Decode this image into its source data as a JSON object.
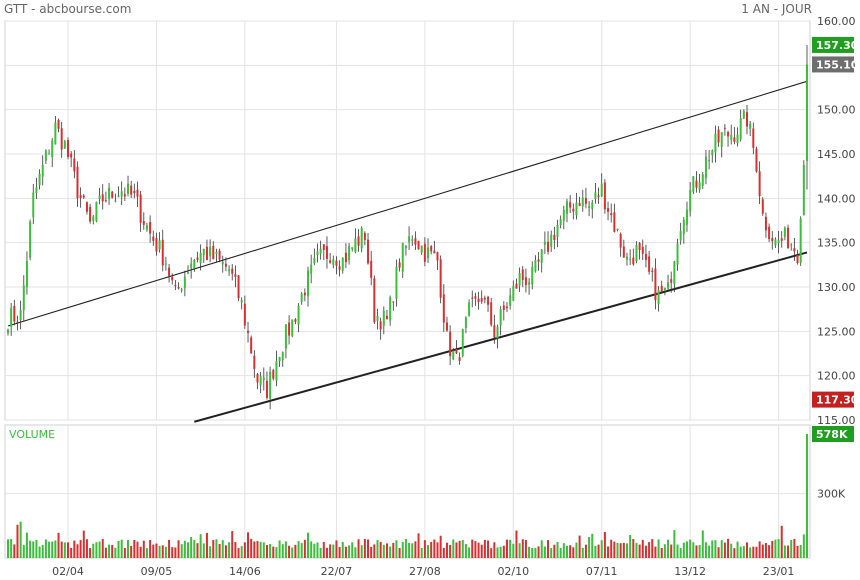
{
  "header": {
    "title": "GTT - abcbourse.com",
    "period": "1 AN - JOUR"
  },
  "chart_data": {
    "type": "candlestick",
    "symbol": "GTT",
    "price_axis": {
      "ylim": [
        115,
        160
      ],
      "ticks": [
        "160.00",
        "155.00",
        "150.00",
        "145.00",
        "140.00",
        "135.00",
        "130.00",
        "125.00",
        "120.00",
        "115.00"
      ]
    },
    "x_ticks": [
      "02/04",
      "09/05",
      "14/06",
      "22/07",
      "27/08",
      "02/10",
      "07/11",
      "13/12",
      "23/01"
    ],
    "badges": {
      "high": "157.30",
      "last": "155.10",
      "low": "117.30"
    },
    "trendlines": [
      {
        "name": "upper",
        "from": {
          "session": 0,
          "price": 125.6
        },
        "to": {
          "session": 253,
          "price": 153.2
        }
      },
      {
        "name": "lower",
        "from": {
          "session": 59,
          "price": 114.8
        },
        "to": {
          "session": 253,
          "price": 133.9
        }
      }
    ],
    "volume": {
      "title": "VOLUME",
      "tick": "300K",
      "tick_value": 300000,
      "max_label": "578K",
      "max_value": 578000,
      "ylim": [
        0,
        620000
      ]
    },
    "sessions": 254,
    "colors": {
      "up": "#3bbf3b",
      "down": "#d83030",
      "grid": "#e3e3e3",
      "high_badge": "#1f9e1f",
      "last_badge": "#6e6e6e",
      "low_badge": "#c42020"
    },
    "anchors": [
      [
        0,
        126.5
      ],
      [
        4,
        126.8
      ],
      [
        8,
        140
      ],
      [
        15,
        148
      ],
      [
        18,
        146
      ],
      [
        22,
        141
      ],
      [
        26,
        137
      ],
      [
        30,
        140
      ],
      [
        36,
        141
      ],
      [
        40,
        140
      ],
      [
        45,
        136
      ],
      [
        50,
        133
      ],
      [
        53,
        129
      ],
      [
        58,
        133
      ],
      [
        62,
        134
      ],
      [
        66,
        133
      ],
      [
        70,
        132
      ],
      [
        74,
        128
      ],
      [
        79,
        119.5
      ],
      [
        82,
        118.5
      ],
      [
        86,
        123
      ],
      [
        90,
        126
      ],
      [
        94,
        130
      ],
      [
        98,
        133
      ],
      [
        102,
        134
      ],
      [
        106,
        133
      ],
      [
        110,
        135
      ],
      [
        113,
        136
      ],
      [
        116,
        127
      ],
      [
        120,
        126
      ],
      [
        124,
        133
      ],
      [
        128,
        136
      ],
      [
        132,
        134
      ],
      [
        136,
        133
      ],
      [
        139,
        124
      ],
      [
        142,
        121.5
      ],
      [
        146,
        127
      ],
      [
        150,
        129
      ],
      [
        154,
        125
      ],
      [
        158,
        128
      ],
      [
        162,
        131
      ],
      [
        166,
        131
      ],
      [
        170,
        134
      ],
      [
        174,
        137
      ],
      [
        178,
        139
      ],
      [
        181,
        140
      ],
      [
        184,
        139
      ],
      [
        188,
        141
      ],
      [
        192,
        137
      ],
      [
        196,
        133
      ],
      [
        199,
        134
      ],
      [
        202,
        132
      ],
      [
        206,
        129
      ],
      [
        209,
        129.5
      ],
      [
        212,
        136
      ],
      [
        215,
        140
      ],
      [
        218,
        142
      ],
      [
        222,
        145
      ],
      [
        226,
        147
      ],
      [
        230,
        147.5
      ],
      [
        234,
        149
      ],
      [
        237,
        144
      ],
      [
        239,
        138
      ],
      [
        243,
        135
      ],
      [
        247,
        135.5
      ],
      [
        250,
        134
      ],
      [
        252,
        144
      ],
      [
        253,
        155.1
      ]
    ]
  }
}
